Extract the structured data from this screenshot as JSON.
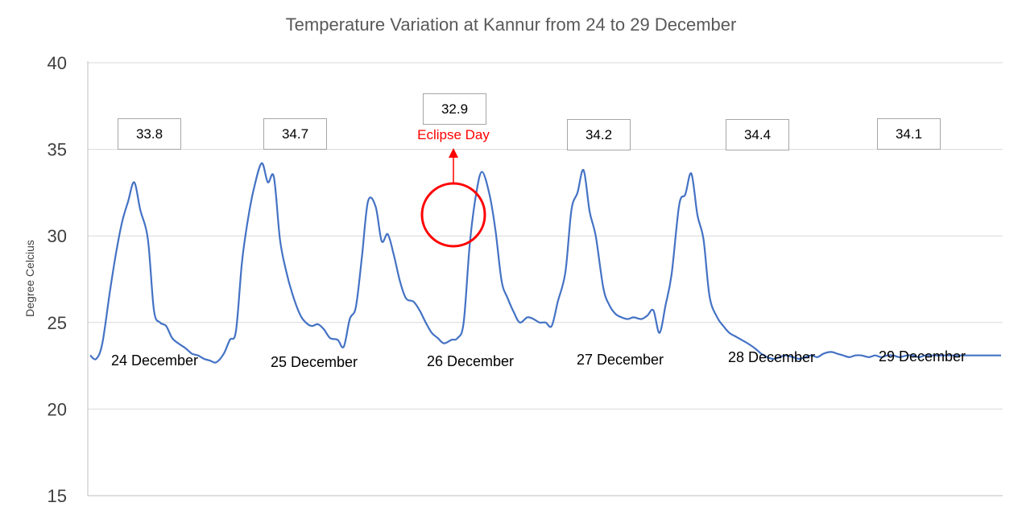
{
  "chart_data": {
    "type": "line",
    "title": "Temperature Variation at Kannur from 24 to 29 December",
    "xlabel": "",
    "ylabel": "Degree Celcius",
    "ylim": [
      15,
      40
    ],
    "yticks": [
      "15",
      "20",
      "25",
      "30",
      "35",
      "40"
    ],
    "grid": true,
    "legend": "none",
    "colors": {
      "line": "#4472c4",
      "grid": "#d9d9d9",
      "axis": "#bfbfbf",
      "highlight": "#ff0000",
      "box_border": "#a6a6a6"
    },
    "series": [
      {
        "x": [
          0.0,
          0.04,
          0.08,
          0.13,
          0.17,
          0.21,
          0.25,
          0.29,
          0.33,
          0.38,
          0.42,
          0.46,
          0.5,
          0.54,
          0.58,
          0.63,
          0.67,
          0.71,
          0.75,
          0.79,
          0.83,
          0.88,
          0.92,
          0.96,
          1.0,
          1.04,
          1.08,
          1.13,
          1.17,
          1.21,
          1.25,
          1.29,
          1.33,
          1.38,
          1.42,
          1.46,
          1.5,
          1.54,
          1.58,
          1.63,
          1.67,
          1.71,
          1.75,
          1.79,
          1.83,
          1.88,
          1.92,
          1.96,
          2.0,
          2.04,
          2.08,
          2.13,
          2.17,
          2.21,
          2.25,
          2.29,
          2.33,
          2.38,
          2.42,
          2.46,
          2.5,
          2.54,
          2.58,
          2.63,
          2.67,
          2.71,
          2.75,
          2.79,
          2.83,
          2.88,
          2.92,
          2.96,
          3.0,
          3.04,
          3.08,
          3.13,
          3.17,
          3.21,
          3.25,
          3.29,
          3.33,
          3.38,
          3.42,
          3.46,
          3.5,
          3.54,
          3.58,
          3.63,
          3.67,
          3.71,
          3.75,
          3.79,
          3.83,
          3.88,
          3.92,
          3.96,
          4.0,
          4.04,
          4.08,
          4.13,
          4.17,
          4.21,
          4.25,
          4.29,
          4.33,
          4.38,
          4.42,
          4.46,
          4.5,
          4.54,
          4.58,
          4.63,
          4.67,
          4.71,
          4.75,
          4.79,
          4.83,
          4.88,
          4.92,
          4.96,
          5.0,
          5.04,
          5.08,
          5.13,
          5.17,
          5.21,
          5.25,
          5.29,
          5.33,
          5.38,
          5.42,
          5.46,
          5.5,
          5.54,
          5.58,
          5.63,
          5.67,
          5.71,
          5.75,
          5.79,
          5.83,
          5.88,
          5.92,
          5.96,
          6.0
        ],
        "values": [
          23.1,
          22.9,
          23.8,
          26.8,
          29.0,
          30.8,
          32.0,
          33.1,
          31.5,
          29.8,
          25.7,
          25.0,
          24.8,
          24.1,
          23.8,
          23.5,
          23.2,
          23.1,
          22.9,
          22.8,
          22.7,
          23.2,
          24.0,
          24.5,
          28.5,
          31.0,
          32.8,
          34.2,
          33.1,
          33.4,
          29.8,
          28.0,
          26.7,
          25.5,
          25.0,
          24.8,
          24.9,
          24.6,
          24.1,
          24.0,
          23.6,
          25.2,
          25.9,
          28.8,
          32.0,
          31.7,
          29.7,
          30.1,
          28.9,
          27.4,
          26.4,
          26.2,
          25.7,
          25.0,
          24.4,
          24.1,
          23.8,
          24.0,
          24.1,
          25.0,
          29.5,
          32.3,
          33.7,
          32.4,
          30.3,
          27.4,
          26.4,
          25.6,
          25.0,
          25.3,
          25.2,
          25.0,
          25.0,
          24.8,
          26.2,
          27.9,
          31.5,
          32.5,
          33.8,
          31.4,
          30.0,
          27.0,
          26.0,
          25.5,
          25.3,
          25.2,
          25.3,
          25.2,
          25.4,
          25.7,
          24.4,
          26.0,
          27.8,
          31.8,
          32.4,
          33.6,
          31.2,
          29.8,
          26.5,
          25.3,
          24.8,
          24.4,
          24.2,
          24.0,
          23.8,
          23.5,
          23.2,
          23.0,
          22.9,
          23.0,
          23.1,
          23.0,
          22.9,
          23.0,
          23.1,
          23.0,
          23.2,
          23.3,
          23.2,
          23.1,
          23.0,
          23.1,
          23.1,
          23.0,
          23.1,
          23.0,
          23.1,
          23.1,
          23.0,
          23.1,
          23.1,
          23.0,
          23.1,
          23.1,
          23.1,
          23.1,
          23.1,
          23.1,
          23.1,
          23.1,
          23.1,
          23.1,
          23.1,
          23.1,
          23.1
        ]
      }
    ],
    "days": [
      {
        "label": "24 December",
        "peak": "33.8"
      },
      {
        "label": "25 December",
        "peak": "34.7"
      },
      {
        "label": "26 December",
        "peak": "32.9",
        "annotation": "Eclipse Day"
      },
      {
        "label": "27 December",
        "peak": "34.2"
      },
      {
        "label": "28 December",
        "peak": "34.4"
      },
      {
        "label": "29 December",
        "peak": "34.1"
      }
    ]
  }
}
